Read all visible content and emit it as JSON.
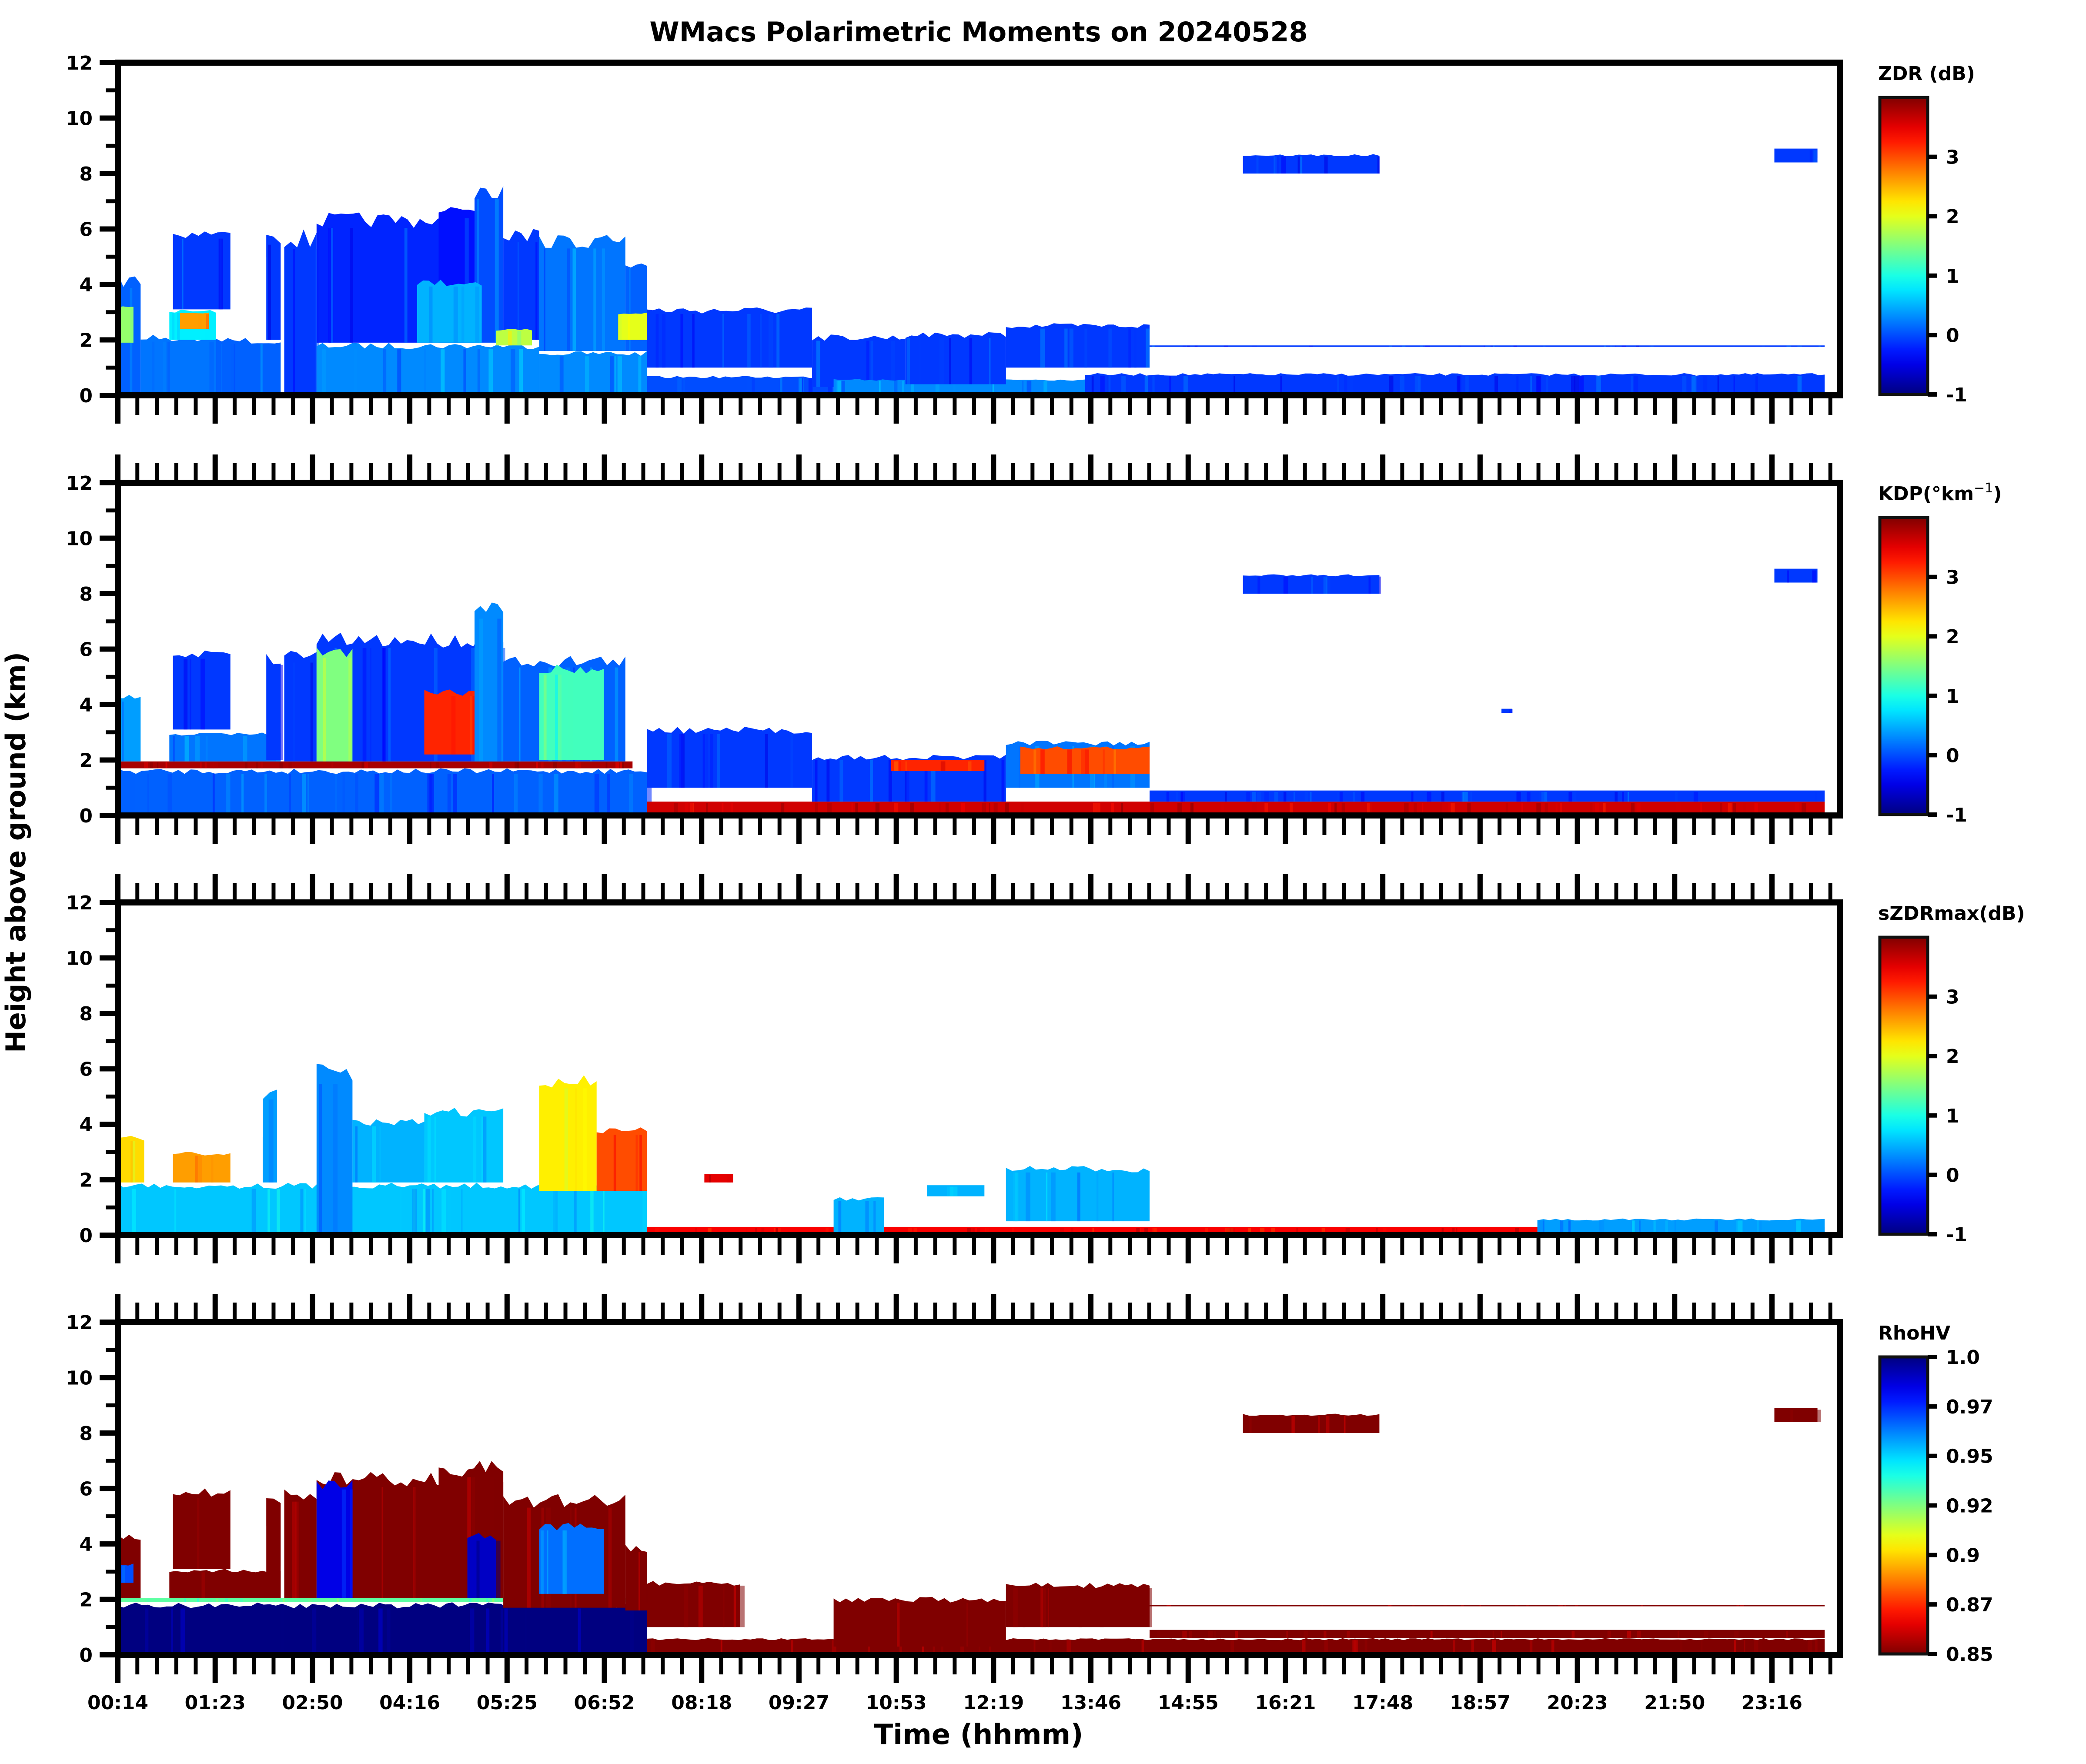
{
  "chart_data": {
    "type": "heatmap",
    "title": "WMacs Polarimetric Moments on 20240528",
    "xlabel": "Time (hhmm)",
    "ylabel": "Height above ground (km)",
    "x_tick_labels": [
      "00:14",
      "01:23",
      "02:50",
      "04:16",
      "05:25",
      "06:52",
      "08:18",
      "09:27",
      "10:53",
      "12:19",
      "13:46",
      "14:55",
      "16:21",
      "17:48",
      "18:57",
      "20:23",
      "21:50",
      "23:16"
    ],
    "x_range_hours": [
      0.2333,
      24.0
    ],
    "y_ticks": [
      0,
      2,
      4,
      6,
      8,
      10,
      12
    ],
    "y_tick_labels": [
      "0",
      "2",
      "4",
      "6",
      "8",
      "10",
      "12"
    ],
    "ylim": [
      0,
      12
    ],
    "grid": false,
    "colormap": "jet",
    "panels": [
      {
        "name": "ZDR",
        "colorbar_label": "ZDR (dB)",
        "clim": [
          -1,
          4
        ],
        "colorbar_ticks": [
          -1,
          0,
          1,
          2,
          3
        ],
        "colorbar_tick_labels": [
          "-1",
          "0",
          "1",
          "2",
          "3"
        ],
        "reversed": false,
        "echoes": [
          {
            "t0": 0.23,
            "t1": 0.55,
            "h0": 0.0,
            "h1": 4.4,
            "v": 0.1
          },
          {
            "t0": 0.23,
            "t1": 0.45,
            "h0": 1.9,
            "h1": 3.3,
            "v": 1.6
          },
          {
            "t0": 0.55,
            "t1": 1.6,
            "h0": 0.0,
            "h1": 2.2,
            "v": 0.2
          },
          {
            "t0": 0.95,
            "t1": 1.6,
            "h0": 2.0,
            "h1": 3.1,
            "v": 0.8
          },
          {
            "t0": 1.1,
            "t1": 1.5,
            "h0": 2.4,
            "h1": 3.0,
            "v": 2.6
          },
          {
            "t0": 1.0,
            "t1": 1.8,
            "h0": 3.1,
            "h1": 6.0,
            "v": -0.1
          },
          {
            "t0": 1.6,
            "t1": 2.5,
            "h0": 0.0,
            "h1": 2.1,
            "v": 0.1
          },
          {
            "t0": 2.3,
            "t1": 2.5,
            "h0": 2.0,
            "h1": 5.9,
            "v": -0.1
          },
          {
            "t0": 2.55,
            "t1": 3.0,
            "h0": 0.0,
            "h1": 6.0,
            "v": -0.1
          },
          {
            "t0": 3.0,
            "t1": 6.1,
            "h0": 0.0,
            "h1": 1.9,
            "v": 0.3
          },
          {
            "t0": 3.0,
            "t1": 5.2,
            "h0": 1.9,
            "h1": 6.6,
            "v": -0.2
          },
          {
            "t0": 4.7,
            "t1": 5.2,
            "h0": 1.9,
            "h1": 7.0,
            "v": -0.3
          },
          {
            "t0": 5.2,
            "t1": 5.6,
            "h0": 1.9,
            "h1": 7.8,
            "v": 0.0
          },
          {
            "t0": 4.4,
            "t1": 5.3,
            "h0": 1.9,
            "h1": 4.2,
            "v": 0.5
          },
          {
            "t0": 5.6,
            "t1": 6.1,
            "h0": 2.0,
            "h1": 6.0,
            "v": -0.1
          },
          {
            "t0": 5.5,
            "t1": 6.0,
            "h0": 1.8,
            "h1": 2.4,
            "v": 1.8
          },
          {
            "t0": 6.1,
            "t1": 7.6,
            "h0": 0.0,
            "h1": 1.6,
            "v": 0.3
          },
          {
            "t0": 6.1,
            "t1": 7.3,
            "h0": 1.6,
            "h1": 5.8,
            "v": 0.2
          },
          {
            "t0": 7.3,
            "t1": 7.6,
            "h0": 1.6,
            "h1": 5.0,
            "v": 0.1
          },
          {
            "t0": 7.2,
            "t1": 7.6,
            "h0": 2.0,
            "h1": 3.0,
            "v": 2.0
          },
          {
            "t0": 7.6,
            "t1": 10.2,
            "h0": 0.0,
            "h1": 0.7,
            "v": 0.0
          },
          {
            "t0": 7.6,
            "t1": 9.9,
            "h0": 1.0,
            "h1": 3.2,
            "v": -0.1
          },
          {
            "t0": 9.9,
            "t1": 11.2,
            "h0": 0.3,
            "h1": 2.2,
            "v": -0.1
          },
          {
            "t0": 10.2,
            "t1": 13.7,
            "h0": 0.0,
            "h1": 0.6,
            "v": 0.3
          },
          {
            "t0": 11.2,
            "t1": 12.6,
            "h0": 0.4,
            "h1": 2.3,
            "v": -0.1
          },
          {
            "t0": 12.6,
            "t1": 14.6,
            "h0": 1.0,
            "h1": 2.6,
            "v": -0.1
          },
          {
            "t0": 13.7,
            "t1": 24.0,
            "h0": 0.0,
            "h1": 0.8,
            "v": -0.1
          },
          {
            "t0": 15.9,
            "t1": 17.8,
            "h0": 8.0,
            "h1": 8.7,
            "v": -0.1
          },
          {
            "t0": 23.3,
            "t1": 23.9,
            "h0": 8.4,
            "h1": 8.9,
            "v": -0.1
          },
          {
            "t0": 14.6,
            "t1": 24.0,
            "h0": 1.75,
            "h1": 1.8,
            "v": -0.1
          }
        ]
      },
      {
        "name": "KDP",
        "colorbar_label": "KDP(°km",
        "colorbar_label_sup": "−1",
        "colorbar_label_end": ")",
        "clim": [
          -1,
          4
        ],
        "colorbar_ticks": [
          -1,
          0,
          1,
          2,
          3
        ],
        "colorbar_tick_labels": [
          "-1",
          "0",
          "1",
          "2",
          "3"
        ],
        "reversed": false,
        "echoes": [
          {
            "t0": 0.23,
            "t1": 7.6,
            "h0": 0.0,
            "h1": 1.7,
            "v": 0.1
          },
          {
            "t0": 0.23,
            "t1": 7.4,
            "h0": 1.7,
            "h1": 1.95,
            "v": 3.8
          },
          {
            "t0": 0.23,
            "t1": 0.55,
            "h0": 1.95,
            "h1": 4.4,
            "v": 0.4
          },
          {
            "t0": 0.95,
            "t1": 2.5,
            "h0": 1.95,
            "h1": 3.0,
            "v": 0.2
          },
          {
            "t0": 1.0,
            "t1": 1.8,
            "h0": 3.1,
            "h1": 6.0,
            "v": -0.1
          },
          {
            "t0": 2.3,
            "t1": 2.5,
            "h0": 2.0,
            "h1": 5.9,
            "v": -0.1
          },
          {
            "t0": 2.55,
            "t1": 3.0,
            "h0": 1.95,
            "h1": 6.0,
            "v": -0.1
          },
          {
            "t0": 3.0,
            "t1": 5.6,
            "h0": 1.95,
            "h1": 6.6,
            "v": -0.1
          },
          {
            "t0": 3.0,
            "t1": 3.5,
            "h0": 1.95,
            "h1": 6.2,
            "v": 1.5
          },
          {
            "t0": 4.5,
            "t1": 5.3,
            "h0": 2.2,
            "h1": 4.6,
            "v": 3.2
          },
          {
            "t0": 5.2,
            "t1": 5.6,
            "h0": 1.95,
            "h1": 7.8,
            "v": 0.3
          },
          {
            "t0": 5.6,
            "t1": 7.3,
            "h0": 1.95,
            "h1": 5.8,
            "v": 0.1
          },
          {
            "t0": 6.1,
            "t1": 7.0,
            "h0": 2.0,
            "h1": 5.5,
            "v": 1.2
          },
          {
            "t0": 7.6,
            "t1": 24.0,
            "h0": 0.0,
            "h1": 0.5,
            "v": 3.6
          },
          {
            "t0": 7.6,
            "t1": 9.9,
            "h0": 1.0,
            "h1": 3.2,
            "v": -0.1
          },
          {
            "t0": 9.9,
            "t1": 12.6,
            "h0": 0.5,
            "h1": 2.2,
            "v": -0.1
          },
          {
            "t0": 11.0,
            "t1": 12.3,
            "h0": 1.6,
            "h1": 2.0,
            "v": 3.2
          },
          {
            "t0": 12.6,
            "t1": 14.6,
            "h0": 1.0,
            "h1": 2.7,
            "v": 0.2
          },
          {
            "t0": 12.8,
            "t1": 14.6,
            "h0": 1.5,
            "h1": 2.5,
            "v": 3.0
          },
          {
            "t0": 14.6,
            "t1": 24.0,
            "h0": 0.5,
            "h1": 0.9,
            "v": -0.1
          },
          {
            "t0": 15.9,
            "t1": 17.8,
            "h0": 8.0,
            "h1": 8.7,
            "v": -0.1
          },
          {
            "t0": 23.3,
            "t1": 23.9,
            "h0": 8.4,
            "h1": 8.9,
            "v": -0.1
          },
          {
            "t0": 19.5,
            "t1": 19.65,
            "h0": 3.7,
            "h1": 3.85,
            "v": -0.1
          }
        ]
      },
      {
        "name": "sZDRmax",
        "colorbar_label": "sZDRmax(dB)",
        "clim": [
          -1,
          4
        ],
        "colorbar_ticks": [
          -1,
          0,
          1,
          2,
          3
        ],
        "colorbar_tick_labels": [
          "-1",
          "0",
          "1",
          "2",
          "3"
        ],
        "reversed": false,
        "echoes": [
          {
            "t0": 0.23,
            "t1": 7.6,
            "h0": 0.0,
            "h1": 1.9,
            "v": 0.6
          },
          {
            "t0": 0.23,
            "t1": 0.6,
            "h0": 1.9,
            "h1": 3.6,
            "v": 2.3
          },
          {
            "t0": 1.0,
            "t1": 1.8,
            "h0": 1.9,
            "h1": 3.0,
            "v": 2.6
          },
          {
            "t0": 2.25,
            "t1": 2.45,
            "h0": 1.9,
            "h1": 5.3,
            "v": 0.4
          },
          {
            "t0": 3.0,
            "t1": 3.5,
            "h0": 0.0,
            "h1": 6.2,
            "v": 0.3
          },
          {
            "t0": 3.5,
            "t1": 4.5,
            "h0": 1.9,
            "h1": 4.2,
            "v": 0.5
          },
          {
            "t0": 4.5,
            "t1": 5.6,
            "h0": 1.9,
            "h1": 4.6,
            "v": 0.6
          },
          {
            "t0": 6.1,
            "t1": 6.9,
            "h0": 1.6,
            "h1": 5.8,
            "v": 2.2
          },
          {
            "t0": 6.9,
            "t1": 7.6,
            "h0": 1.6,
            "h1": 3.9,
            "v": 3.0
          },
          {
            "t0": 7.6,
            "t1": 24.0,
            "h0": 0.0,
            "h1": 0.3,
            "v": 3.4
          },
          {
            "t0": 10.2,
            "t1": 10.9,
            "h0": 0.0,
            "h1": 1.4,
            "v": 0.5
          },
          {
            "t0": 11.5,
            "t1": 12.3,
            "h0": 1.4,
            "h1": 1.8,
            "v": 0.5
          },
          {
            "t0": 12.6,
            "t1": 14.6,
            "h0": 0.5,
            "h1": 2.5,
            "v": 0.5
          },
          {
            "t0": 8.4,
            "t1": 8.8,
            "h0": 1.9,
            "h1": 2.2,
            "v": 3.5
          },
          {
            "t0": 20.0,
            "t1": 24.0,
            "h0": 0.0,
            "h1": 0.6,
            "v": 0.4
          }
        ]
      },
      {
        "name": "RhoHV",
        "colorbar_label": "RhoHV",
        "clim": [
          0.85,
          1.0
        ],
        "colorbar_ticks": [
          1.0,
          0.975,
          0.95,
          0.925,
          0.9,
          0.875,
          0.85
        ],
        "colorbar_tick_labels": [
          "1.0",
          "0.97",
          "0.95",
          "0.92",
          "0.9",
          "0.87",
          "0.85"
        ],
        "reversed": true,
        "echoes": [
          {
            "t0": 0.23,
            "t1": 7.6,
            "h0": 0.0,
            "h1": 1.9,
            "v": 1.0
          },
          {
            "t0": 0.23,
            "t1": 7.4,
            "h0": 1.9,
            "h1": 2.05,
            "v": 0.93
          },
          {
            "t0": 0.23,
            "t1": 0.55,
            "h0": 2.05,
            "h1": 4.4,
            "v": 0.85
          },
          {
            "t0": 0.23,
            "t1": 0.45,
            "h0": 2.6,
            "h1": 3.3,
            "v": 0.97
          },
          {
            "t0": 0.95,
            "t1": 2.5,
            "h0": 2.05,
            "h1": 3.1,
            "v": 0.85
          },
          {
            "t0": 1.0,
            "t1": 1.8,
            "h0": 3.1,
            "h1": 6.0,
            "v": 0.85
          },
          {
            "t0": 2.3,
            "t1": 2.5,
            "h0": 2.05,
            "h1": 5.9,
            "v": 0.85
          },
          {
            "t0": 2.55,
            "t1": 3.0,
            "h0": 2.05,
            "h1": 6.0,
            "v": 0.85
          },
          {
            "t0": 3.0,
            "t1": 5.6,
            "h0": 2.05,
            "h1": 6.6,
            "v": 0.85
          },
          {
            "t0": 3.0,
            "t1": 3.5,
            "h0": 2.05,
            "h1": 6.5,
            "v": 0.985
          },
          {
            "t0": 4.7,
            "t1": 5.6,
            "h0": 2.05,
            "h1": 7.0,
            "v": 0.85
          },
          {
            "t0": 5.1,
            "t1": 5.5,
            "h0": 2.05,
            "h1": 4.4,
            "v": 0.99
          },
          {
            "t0": 5.6,
            "t1": 7.3,
            "h0": 1.7,
            "h1": 5.8,
            "v": 0.85
          },
          {
            "t0": 6.1,
            "t1": 7.0,
            "h0": 2.2,
            "h1": 4.8,
            "v": 0.965
          },
          {
            "t0": 7.3,
            "t1": 7.6,
            "h0": 1.6,
            "h1": 4.0,
            "v": 0.85
          },
          {
            "t0": 7.6,
            "t1": 24.0,
            "h0": 0.0,
            "h1": 0.6,
            "v": 0.85
          },
          {
            "t0": 7.6,
            "t1": 8.9,
            "h0": 1.0,
            "h1": 2.7,
            "v": 0.85
          },
          {
            "t0": 10.2,
            "t1": 12.6,
            "h0": 0.3,
            "h1": 2.1,
            "v": 0.85
          },
          {
            "t0": 12.6,
            "t1": 14.6,
            "h0": 1.0,
            "h1": 2.6,
            "v": 0.85
          },
          {
            "t0": 14.6,
            "t1": 24.0,
            "h0": 0.6,
            "h1": 0.9,
            "v": 0.85
          },
          {
            "t0": 15.9,
            "t1": 17.8,
            "h0": 8.0,
            "h1": 8.7,
            "v": 0.85
          },
          {
            "t0": 23.3,
            "t1": 23.9,
            "h0": 8.4,
            "h1": 8.9,
            "v": 0.85
          },
          {
            "t0": 14.6,
            "t1": 24.0,
            "h0": 1.75,
            "h1": 1.8,
            "v": 0.85
          }
        ]
      }
    ]
  },
  "colors": {
    "axis": "#000000",
    "background": "#ffffff"
  }
}
